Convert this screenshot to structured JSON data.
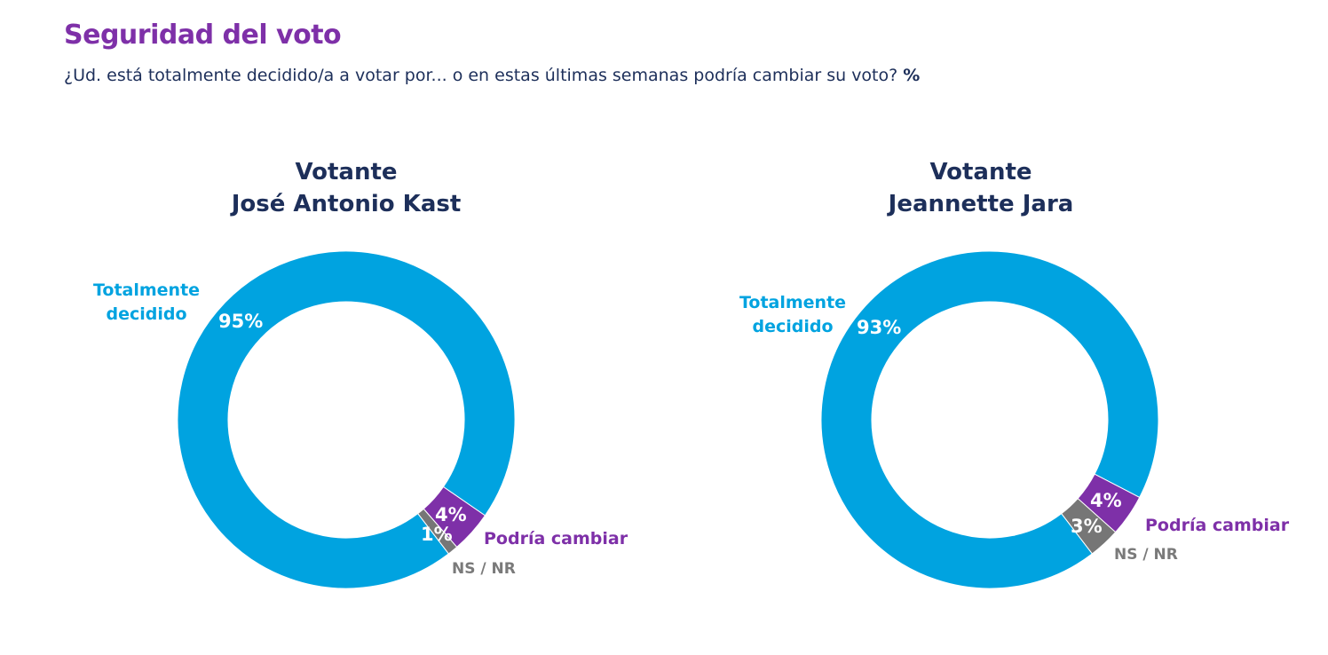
{
  "title": "Seguridad del voto",
  "subtitle": "¿Ud. está totalmente decidido/a a votar por... o en estas últimas semanas podría cambiar su voto?",
  "subtitle_unit": "%",
  "colors": {
    "totalmente_decidido": "#00A3E0",
    "podria_cambiar": "#7E30A8",
    "ns_nr": "#767676",
    "title": "#7E30A8",
    "text": "#1d2f5a"
  },
  "chart_data": [
    {
      "type": "pie",
      "donut": true,
      "title_line1": "Votante",
      "title_line2": "José Antonio Kast",
      "categories": [
        "Totalmente decidido",
        "Podría cambiar",
        "NS / NR"
      ],
      "values": [
        95,
        4,
        1
      ],
      "value_labels": [
        "95%",
        "4%",
        "1%"
      ],
      "category_labels": {
        "totalmente": "Totalmente",
        "decidido": "decidido",
        "podria": "Podría cambiar",
        "nsnr": "NS / NR"
      }
    },
    {
      "type": "pie",
      "donut": true,
      "title_line1": "Votante",
      "title_line2": "Jeannette Jara",
      "categories": [
        "Totalmente decidido",
        "Podría cambiar",
        "NS / NR"
      ],
      "values": [
        93,
        4,
        3
      ],
      "value_labels": [
        "93%",
        "4%",
        "3%"
      ],
      "category_labels": {
        "totalmente": "Totalmente",
        "decidido": "decidido",
        "podria": "Podría cambiar",
        "nsnr": "NS / NR"
      }
    }
  ]
}
